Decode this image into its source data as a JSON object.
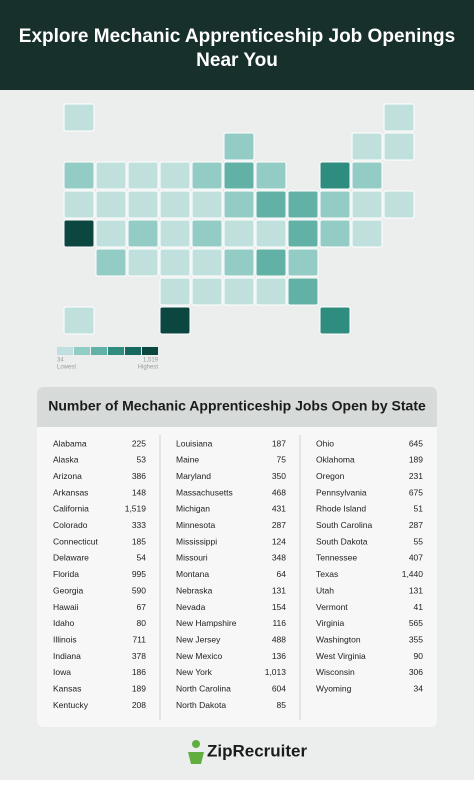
{
  "header": {
    "title": "Explore Mechanic Apprenticeship Job Openings Near You"
  },
  "legend": {
    "min": 34,
    "max": {
      "value": 1519,
      "label": "1,519"
    },
    "low_label": "Lowest",
    "high_label": "Highest",
    "colors": [
      "#bfe0dc",
      "#93ccc5",
      "#62b1a6",
      "#2f8d80",
      "#17695f",
      "#0c4640"
    ]
  },
  "table": {
    "title": "Number of Mechanic Apprenticeship Jobs Open by State",
    "columns": [
      [
        [
          "Alabama",
          225
        ],
        [
          "Alaska",
          53
        ],
        [
          "Arizona",
          386
        ],
        [
          "Arkansas",
          148
        ],
        [
          "California",
          {
            "value": 1519,
            "label": "1,519"
          }
        ],
        [
          "Colorado",
          333
        ],
        [
          "Connecticut",
          185
        ],
        [
          "Delaware",
          54
        ],
        [
          "Florida",
          995
        ],
        [
          "Georgia",
          590
        ],
        [
          "Hawaii",
          67
        ],
        [
          "Idaho",
          80
        ],
        [
          "Illinois",
          711
        ],
        [
          "Indiana",
          378
        ],
        [
          "Iowa",
          186
        ],
        [
          "Kansas",
          189
        ],
        [
          "Kentucky",
          208
        ]
      ],
      [
        [
          "Louisiana",
          187
        ],
        [
          "Maine",
          75
        ],
        [
          "Maryland",
          350
        ],
        [
          "Massachusetts",
          468
        ],
        [
          "Michigan",
          431
        ],
        [
          "Minnesota",
          287
        ],
        [
          "Mississippi",
          124
        ],
        [
          "Missouri",
          348
        ],
        [
          "Montana",
          64
        ],
        [
          "Nebraska",
          131
        ],
        [
          "Nevada",
          154
        ],
        [
          "New Hampshire",
          116
        ],
        [
          "New Jersey",
          488
        ],
        [
          "New Mexico",
          136
        ],
        [
          "New York",
          {
            "value": 1013,
            "label": "1,013"
          }
        ],
        [
          "North Carolina",
          604
        ],
        [
          "North Dakota",
          85
        ]
      ],
      [
        [
          "Ohio",
          645
        ],
        [
          "Oklahoma",
          189
        ],
        [
          "Oregon",
          231
        ],
        [
          "Pennsylvania",
          675
        ],
        [
          "Rhode Island",
          51
        ],
        [
          "South Carolina",
          287
        ],
        [
          "South Dakota",
          55
        ],
        [
          "Tennessee",
          407
        ],
        [
          "Texas",
          {
            "value": 1440,
            "label": "1,440"
          }
        ],
        [
          "Utah",
          131
        ],
        [
          "Vermont",
          41
        ],
        [
          "Virginia",
          565
        ],
        [
          "Washington",
          355
        ],
        [
          "West Virginia",
          90
        ],
        [
          "Wisconsin",
          306
        ],
        [
          "Wyoming",
          34
        ]
      ]
    ]
  },
  "footer": {
    "logo": "ZipRecruiter"
  }
}
